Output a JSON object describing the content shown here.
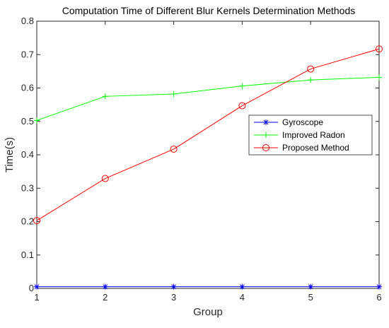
{
  "chart_data": {
    "type": "line",
    "title": "Computation Time of Different Blur Kernels Determination Methods",
    "xlabel": "Group",
    "ylabel": "Time(s)",
    "xlim": [
      1,
      6
    ],
    "ylim": [
      0,
      0.8
    ],
    "x_ticks": [
      "1",
      "2",
      "3",
      "4",
      "5",
      "6"
    ],
    "y_ticks": [
      "0",
      "0.1",
      "0.2",
      "0.3",
      "0.4",
      "0.5",
      "0.6",
      "0.7",
      "0.8"
    ],
    "x": [
      1,
      2,
      3,
      4,
      5,
      6
    ],
    "grid": false,
    "legend_position": "right",
    "series": [
      {
        "name": "Gyroscope",
        "color": "#0000ff",
        "marker": "asterisk",
        "values": [
          0.005,
          0.005,
          0.005,
          0.005,
          0.005,
          0.005
        ]
      },
      {
        "name": "Improved Radon",
        "color": "#00ff00",
        "marker": "plus",
        "values": [
          0.503,
          0.575,
          0.582,
          0.606,
          0.624,
          0.632
        ]
      },
      {
        "name": "Proposed Method",
        "color": "#ff0000",
        "marker": "circle",
        "values": [
          0.203,
          0.329,
          0.417,
          0.547,
          0.657,
          0.717
        ]
      }
    ]
  }
}
